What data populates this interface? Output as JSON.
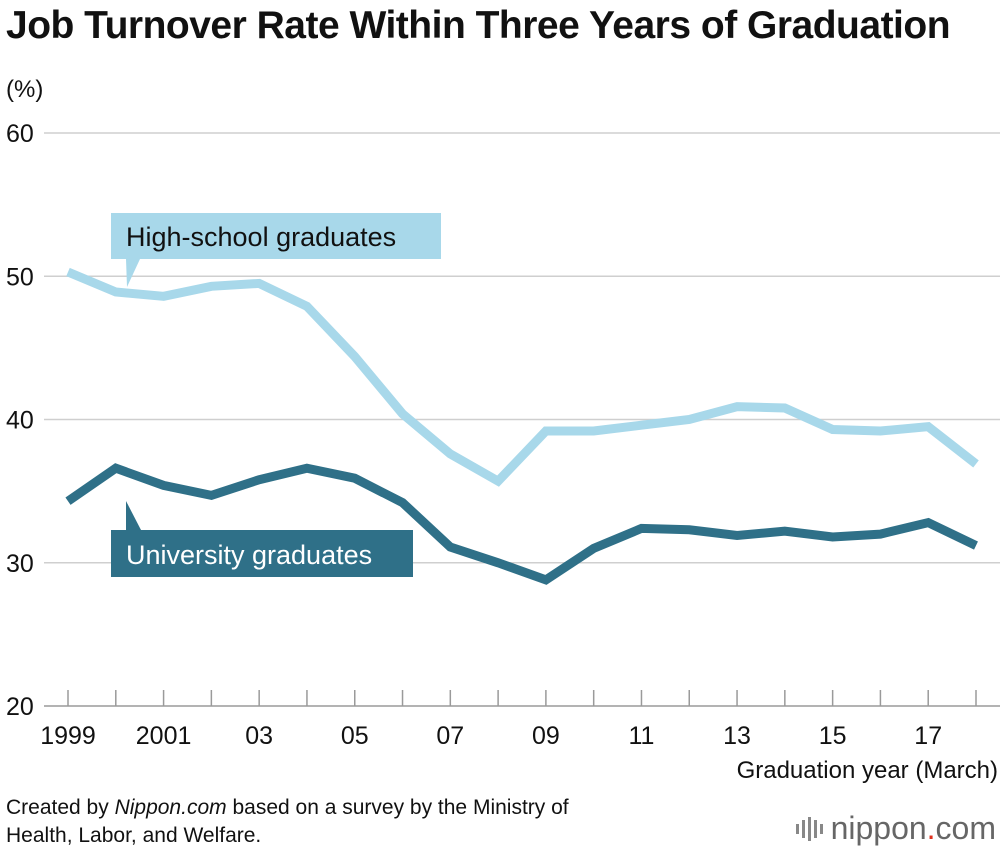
{
  "colors": {
    "high_school": "#a8d8ea",
    "university": "#2f7088",
    "grid": "#cfcfcf"
  },
  "chart_data": {
    "type": "line",
    "title": "Job Turnover Rate Within Three Years of Graduation",
    "ylabel": "(%)",
    "xlabel": "Graduation year (March)",
    "ylim": [
      20,
      60
    ],
    "yticks": [
      20,
      30,
      40,
      50,
      60
    ],
    "x": [
      1999,
      2000,
      2001,
      2002,
      2003,
      2004,
      2005,
      2006,
      2007,
      2008,
      2009,
      2010,
      2011,
      2012,
      2013,
      2014,
      2015,
      2016,
      2017,
      2018
    ],
    "xtick_labels": [
      "1999",
      "",
      "2001",
      "",
      "03",
      "",
      "05",
      "",
      "07",
      "",
      "09",
      "",
      "11",
      "",
      "13",
      "",
      "15",
      "",
      "17",
      ""
    ],
    "grid": true,
    "series": [
      {
        "name": "High-school graduates",
        "values": [
          50.3,
          48.9,
          48.6,
          49.3,
          49.5,
          47.9,
          44.4,
          40.4,
          37.6,
          35.7,
          39.2,
          39.2,
          39.6,
          40.0,
          40.9,
          40.8,
          39.3,
          39.2,
          39.5,
          36.9
        ]
      },
      {
        "name": "University graduates",
        "values": [
          34.3,
          36.6,
          35.4,
          34.7,
          35.8,
          36.6,
          35.9,
          34.2,
          31.1,
          30.0,
          28.8,
          31.0,
          32.4,
          32.3,
          31.9,
          32.2,
          31.8,
          32.0,
          32.8,
          31.2
        ]
      }
    ]
  },
  "footer": {
    "prefix": "Created by ",
    "brand": "Nippon.com",
    "line1_rest": " based on a survey by the Ministry of",
    "line2": "Health, Labor, and Welfare."
  },
  "logo": {
    "name": "nippon",
    "dot": ".",
    "tld": "com"
  }
}
